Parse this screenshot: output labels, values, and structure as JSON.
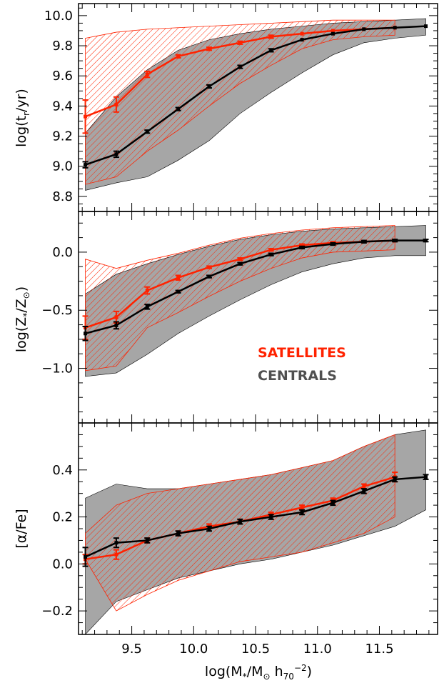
{
  "colors": {
    "satellites": "#ff2200",
    "centrals": "#000000",
    "centrals_band": "#a6a6a6"
  },
  "chart_data": [
    {
      "type": "line",
      "ylabel": "log(t_r/yr)",
      "xlim": [
        9.07,
        11.97
      ],
      "ylim": [
        8.7,
        10.08
      ],
      "yticks": [
        "8.8",
        "9.0",
        "9.2",
        "9.4",
        "9.6",
        "9.8",
        "10.0"
      ],
      "series": [
        {
          "name": "Satellites",
          "x": [
            9.125,
            9.375,
            9.625,
            9.875,
            10.125,
            10.375,
            10.625,
            10.875,
            11.125,
            11.375,
            11.625
          ],
          "y": [
            9.33,
            9.41,
            9.61,
            9.73,
            9.78,
            9.82,
            9.86,
            9.88,
            9.9,
            9.91,
            9.92
          ],
          "err": [
            0.11,
            0.05,
            0.02,
            0.01,
            0.01,
            0.01,
            0.01,
            0.0,
            0.0,
            0.0,
            0.0
          ],
          "band_lo": [
            8.88,
            8.93,
            9.1,
            9.24,
            9.4,
            9.55,
            9.67,
            9.78,
            9.84,
            9.86,
            9.87
          ],
          "band_hi": [
            9.85,
            9.89,
            9.91,
            9.92,
            9.93,
            9.94,
            9.95,
            9.96,
            9.97,
            9.97,
            9.97
          ]
        },
        {
          "name": "Centrals",
          "x": [
            9.125,
            9.375,
            9.625,
            9.875,
            10.125,
            10.375,
            10.625,
            10.875,
            11.125,
            11.375,
            11.625,
            11.875
          ],
          "y": [
            9.01,
            9.08,
            9.23,
            9.38,
            9.53,
            9.66,
            9.77,
            9.84,
            9.88,
            9.91,
            9.92,
            9.93
          ],
          "err": [
            0.02,
            0.02,
            0.01,
            0.01,
            0.01,
            0.01,
            0.01,
            0.0,
            0.0,
            0.0,
            0.0,
            0.0
          ],
          "band_lo": [
            8.84,
            8.89,
            8.93,
            9.04,
            9.17,
            9.35,
            9.49,
            9.62,
            9.74,
            9.82,
            9.85,
            9.87
          ],
          "band_hi": [
            9.22,
            9.46,
            9.64,
            9.77,
            9.84,
            9.88,
            9.91,
            9.93,
            9.95,
            9.96,
            9.97,
            9.98
          ]
        }
      ]
    },
    {
      "type": "line",
      "ylabel": "log(Z_*/Z_⊙)",
      "xlim": [
        9.07,
        11.97
      ],
      "ylim": [
        -1.47,
        0.35
      ],
      "yticks": [
        "-1.0",
        "-0.5",
        "0.0"
      ],
      "legend": [
        "SATELLITES",
        "CENTRALS"
      ],
      "series": [
        {
          "name": "Satellites",
          "x": [
            9.125,
            9.375,
            9.625,
            9.875,
            10.125,
            10.375,
            10.625,
            10.875,
            11.125,
            11.375,
            11.625
          ],
          "y": [
            -0.65,
            -0.56,
            -0.33,
            -0.22,
            -0.13,
            -0.06,
            0.02,
            0.06,
            0.08,
            0.09,
            0.1
          ],
          "err": [
            0.1,
            0.05,
            0.03,
            0.02,
            0.01,
            0.01,
            0.01,
            0.01,
            0.01,
            0.01,
            0.01
          ],
          "band_lo": [
            -1.02,
            -0.98,
            -0.65,
            -0.52,
            -0.38,
            -0.25,
            -0.14,
            -0.05,
            0.0,
            0.01,
            0.02
          ],
          "band_hi": [
            -0.06,
            -0.14,
            -0.07,
            -0.01,
            0.06,
            0.12,
            0.16,
            0.19,
            0.21,
            0.22,
            0.23
          ]
        },
        {
          "name": "Centrals",
          "x": [
            9.125,
            9.375,
            9.625,
            9.875,
            10.125,
            10.375,
            10.625,
            10.875,
            11.125,
            11.375,
            11.625,
            11.875
          ],
          "y": [
            -0.7,
            -0.63,
            -0.47,
            -0.34,
            -0.21,
            -0.1,
            -0.02,
            0.04,
            0.07,
            0.09,
            0.1,
            0.1
          ],
          "err": [
            0.06,
            0.03,
            0.02,
            0.01,
            0.01,
            0.01,
            0.01,
            0.01,
            0.01,
            0.01,
            0.01,
            0.01
          ],
          "band_lo": [
            -1.07,
            -1.04,
            -0.88,
            -0.7,
            -0.55,
            -0.41,
            -0.28,
            -0.17,
            -0.1,
            -0.05,
            -0.03,
            -0.03
          ],
          "band_hi": [
            -0.36,
            -0.19,
            -0.1,
            -0.02,
            0.05,
            0.11,
            0.15,
            0.18,
            0.2,
            0.21,
            0.22,
            0.23
          ]
        }
      ]
    },
    {
      "type": "line",
      "ylabel": "[α/Fe]",
      "xlabel": "log(M_*/M_⊙ h_70^-2)",
      "xlim": [
        9.07,
        11.97
      ],
      "ylim": [
        -0.3,
        0.6
      ],
      "xticks": [
        "9.5",
        "10.0",
        "10.5",
        "11.0",
        "11.5"
      ],
      "yticks": [
        "-0.2",
        "0.0",
        "0.2",
        "0.4"
      ],
      "series": [
        {
          "name": "Satellites",
          "x": [
            9.125,
            9.375,
            9.625,
            9.875,
            10.125,
            10.375,
            10.625,
            10.875,
            11.125,
            11.375,
            11.625
          ],
          "y": [
            0.02,
            0.04,
            0.1,
            0.13,
            0.16,
            0.18,
            0.21,
            0.24,
            0.27,
            0.33,
            0.37
          ],
          "err": [
            0.02,
            0.02,
            0.01,
            0.01,
            0.01,
            0.01,
            0.01,
            0.01,
            0.01,
            0.01,
            0.02
          ],
          "band_lo": [
            0.02,
            -0.2,
            -0.13,
            -0.07,
            -0.03,
            0.01,
            0.03,
            0.05,
            0.09,
            0.13,
            0.2
          ],
          "band_hi": [
            0.13,
            0.25,
            0.3,
            0.32,
            0.34,
            0.36,
            0.38,
            0.41,
            0.44,
            0.5,
            0.55
          ]
        },
        {
          "name": "Centrals",
          "x": [
            9.125,
            9.375,
            9.625,
            9.875,
            10.125,
            10.375,
            10.625,
            10.875,
            11.125,
            11.375,
            11.625,
            11.875
          ],
          "y": [
            0.03,
            0.09,
            0.1,
            0.13,
            0.15,
            0.18,
            0.2,
            0.22,
            0.26,
            0.31,
            0.36,
            0.37
          ],
          "err": [
            0.04,
            0.02,
            0.01,
            0.01,
            0.01,
            0.01,
            0.01,
            0.01,
            0.01,
            0.01,
            0.01,
            0.01
          ],
          "band_lo": [
            -0.3,
            -0.16,
            -0.11,
            -0.06,
            -0.03,
            0.0,
            0.02,
            0.05,
            0.08,
            0.12,
            0.16,
            0.23
          ],
          "band_hi": [
            0.28,
            0.34,
            0.32,
            0.32,
            0.34,
            0.36,
            0.38,
            0.41,
            0.44,
            0.5,
            0.55,
            0.57
          ]
        }
      ]
    }
  ]
}
